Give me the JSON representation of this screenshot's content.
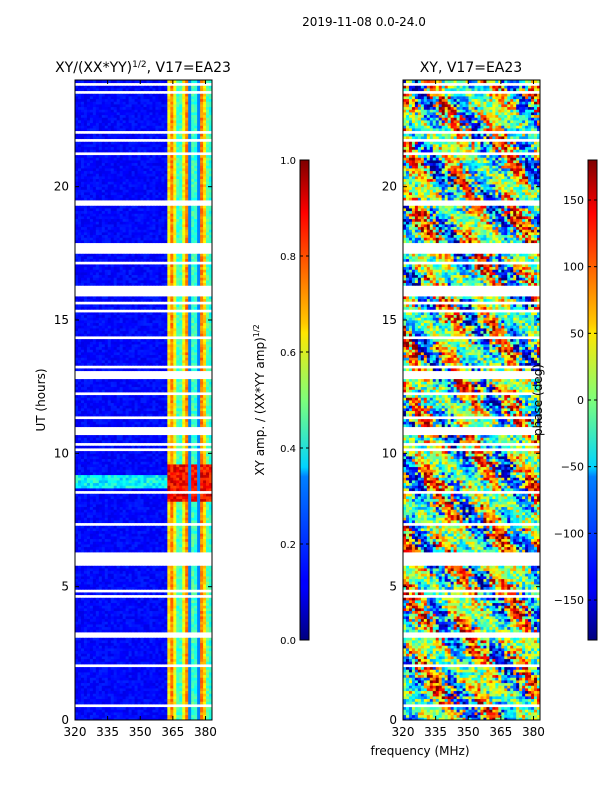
{
  "suptitle": "2019-11-08 0.0-24.0",
  "chart_data": [
    {
      "type": "heatmap",
      "title_main": "XY/(XX*YY)",
      "title_sup": "1/2",
      "title_tail": ", V17=EA23",
      "xlabel": "",
      "ylabel": "UT (hours)",
      "xlim": [
        320,
        383
      ],
      "ylim": [
        0,
        24
      ],
      "xticks": [
        320,
        335,
        350,
        365,
        380
      ],
      "yticks": [
        0,
        5,
        10,
        15,
        20
      ],
      "colorbar": {
        "label_main": "XY amp. / (XX*YY amp)",
        "label_sup": "1/2",
        "range": [
          0.0,
          1.0
        ],
        "ticks": [
          "0.0",
          "0.2",
          "0.4",
          "0.6",
          "0.8",
          "1.0"
        ]
      },
      "description": "Normalized cross-correlation amplitude vs frequency and time; low (~0.1) below ~362 MHz, elevated (0.5-0.9) in 362-382 MHz band, peak around 8.5-9.5 h"
    },
    {
      "type": "heatmap",
      "title": "XY, V17=EA23",
      "xlabel": "frequency (MHz)",
      "ylabel": "",
      "xlim": [
        320,
        383
      ],
      "ylim": [
        0,
        24
      ],
      "xticks": [
        320,
        335,
        350,
        365,
        380
      ],
      "yticks": [
        0,
        5,
        10,
        15,
        20
      ],
      "colorbar": {
        "label": "phase (deg)",
        "range": [
          -180,
          180
        ],
        "ticks": [
          "−150",
          "−100",
          "−50",
          "0",
          "50",
          "100",
          "150"
        ]
      },
      "description": "XY cross-correlation phase in degrees, spanning the full -180 to 180 range with noisy structure"
    }
  ]
}
